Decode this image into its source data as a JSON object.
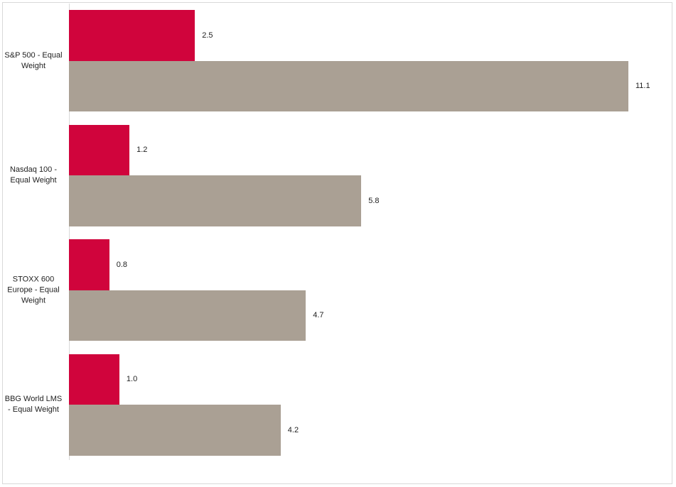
{
  "chart_data": {
    "type": "hbar",
    "categories": [
      "S&P 500 - Equal Weight",
      "Nasdaq 100 - Equal Weight",
      "STOXX 600 Europe - Equal Weight",
      "BBG World LMS - Equal Weight"
    ],
    "series": [
      {
        "color": "#d0043c",
        "values": [
          2.5,
          1.2,
          0.8,
          1.0
        ],
        "value_labels": [
          "2.5",
          "1.2",
          "0.8",
          "1.0"
        ]
      },
      {
        "color": "#aaa094",
        "values": [
          11.1,
          5.8,
          4.7,
          4.2
        ],
        "value_labels": [
          "11.1",
          "5.8",
          "4.7",
          "4.2"
        ]
      }
    ]
  }
}
